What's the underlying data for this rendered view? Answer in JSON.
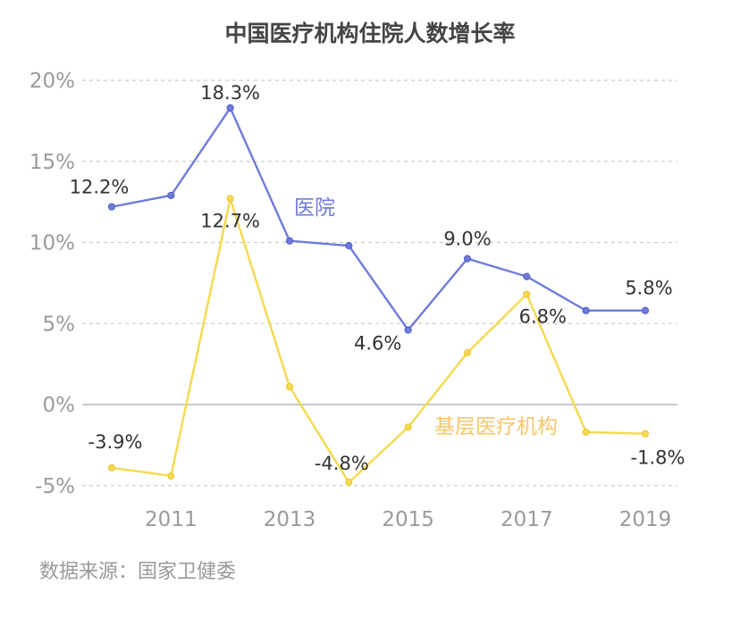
{
  "chart_data": {
    "type": "line",
    "title": "中国医疗机构住院人数增长率",
    "x": [
      2010,
      2011,
      2012,
      2013,
      2014,
      2015,
      2016,
      2017,
      2018,
      2019
    ],
    "x_ticks": [
      "2011",
      "2013",
      "2015",
      "2017",
      "2019"
    ],
    "y_ticks": [
      "-5%",
      "0%",
      "5%",
      "10%",
      "15%",
      "20%"
    ],
    "ylim": [
      -5,
      20
    ],
    "grid": "horizontal-dashed",
    "series": [
      {
        "name": "医院",
        "color": "#6f7bd9",
        "values": [
          12.2,
          12.9,
          18.3,
          10.1,
          9.8,
          4.6,
          9.0,
          7.9,
          5.8,
          5.8
        ],
        "labels": [
          {
            "index": 0,
            "text": "12.2%"
          },
          {
            "index": 2,
            "text": "18.3%"
          },
          {
            "index": 5,
            "text": "4.6%"
          },
          {
            "index": 6,
            "text": "9.0%"
          },
          {
            "index": 9,
            "text": "5.8%"
          }
        ]
      },
      {
        "name": "基层医疗机构",
        "color": "#f5d94e",
        "label_color": "#f7c66a",
        "values": [
          -3.9,
          -4.4,
          12.7,
          1.1,
          -4.8,
          -1.4,
          3.2,
          6.8,
          -1.7,
          -1.8
        ],
        "labels": [
          {
            "index": 0,
            "text": "-3.9%"
          },
          {
            "index": 2,
            "text": "12.7%"
          },
          {
            "index": 4,
            "text": "-4.8%"
          },
          {
            "index": 7,
            "text": "6.8%"
          },
          {
            "index": 9,
            "text": "-1.8%"
          }
        ]
      }
    ]
  },
  "source": "数据来源：国家卫健委"
}
